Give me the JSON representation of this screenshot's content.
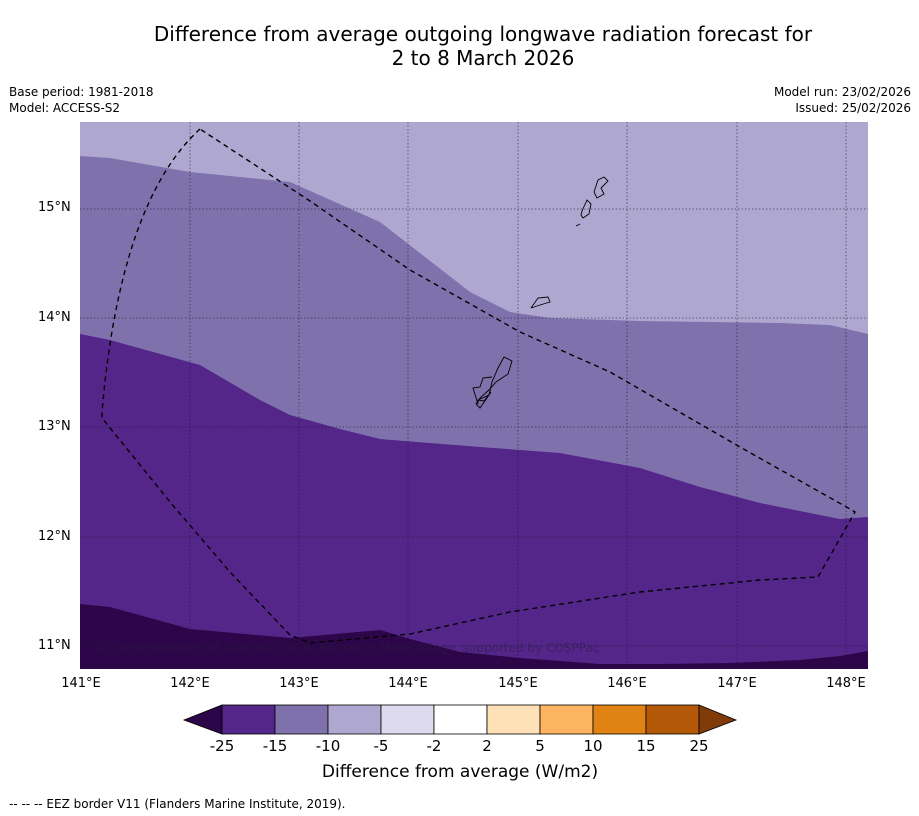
{
  "header": {
    "title_line1": "Difference from average outgoing longwave radiation forecast for",
    "title_line2": "2 to 8 March 2026",
    "base_period": "Base period: 1981-2018",
    "model": "Model: ACCESS-S2",
    "model_run": "Model run: 23/02/2026",
    "issued": "Issued: 25/02/2026"
  },
  "map": {
    "latitude_labels": [
      "15°N",
      "14°N",
      "13°N",
      "12°N",
      "11°N"
    ],
    "longitude_labels": [
      "141°E",
      "142°E",
      "143°E",
      "144°E",
      "145°E",
      "146°E",
      "147°E",
      "148°E"
    ],
    "copyright": "© Commonwealth of Australia 2026, Bureau of Meteorology, supported by COSPPac",
    "colors": {
      "band_lt_minus25": "#2d0549",
      "band_minus25_to_minus15": "#54268a",
      "band_minus15_to_minus10": "#7f72ac",
      "band_minus10_to_minus5": "#aea8d0",
      "land_outline": "#000000"
    }
  },
  "colorbar": {
    "title": "Difference from average (W/m2)",
    "tick_labels": [
      "-25",
      "-15",
      "-10",
      "-5",
      "-2",
      "2",
      "5",
      "10",
      "15",
      "25"
    ],
    "colors": [
      "#2d0549",
      "#54268a",
      "#7f72ac",
      "#aea8d0",
      "#dcdaec",
      "#ffffff",
      "#fde0b6",
      "#fcb462",
      "#e08214",
      "#b35806",
      "#7f3b08"
    ]
  },
  "footnote": "--  --  -- EEZ border V11 (Flanders Marine Institute, 2019)."
}
